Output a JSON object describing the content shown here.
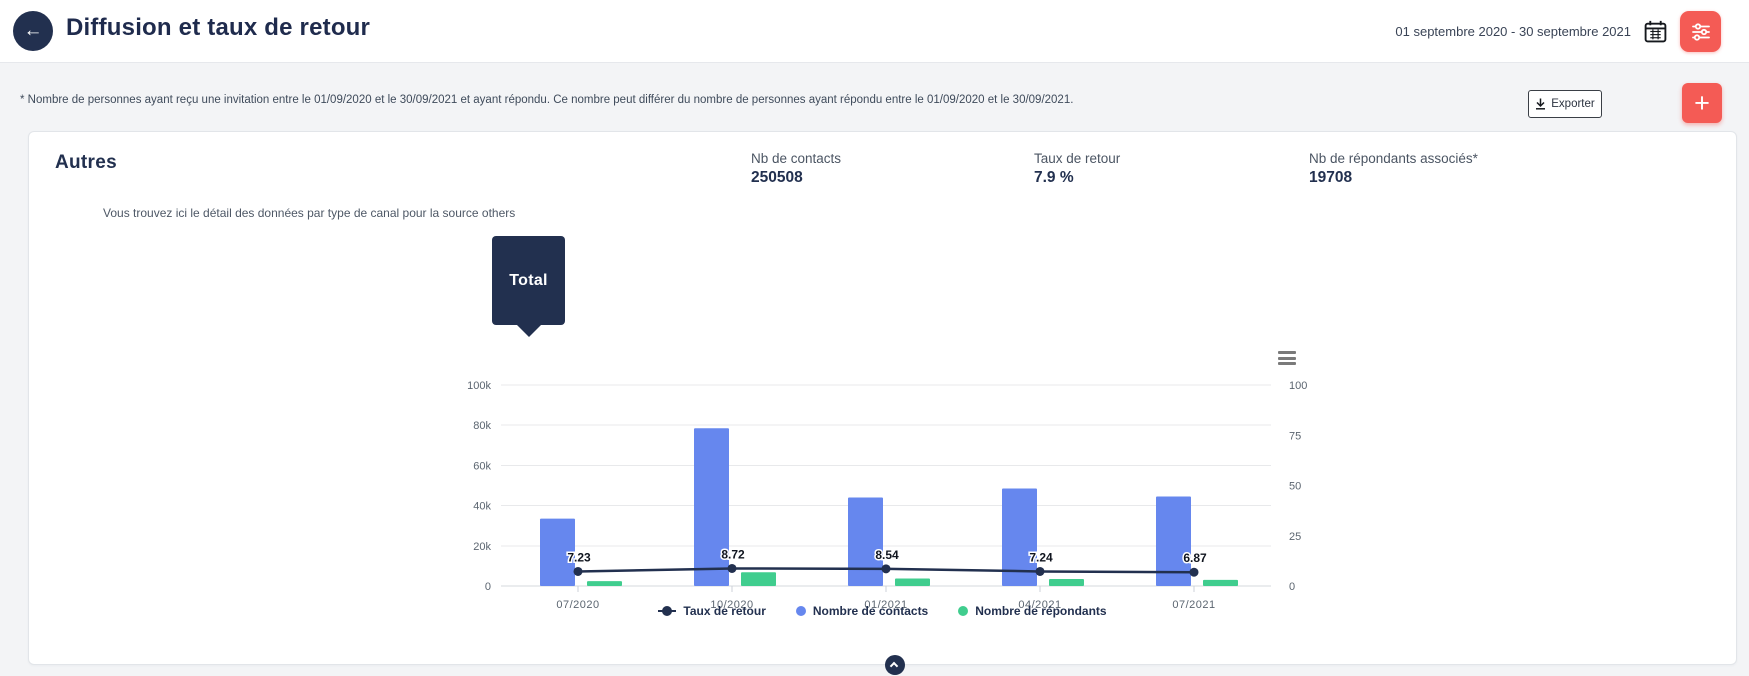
{
  "header": {
    "title": "Diffusion et taux de retour",
    "date_range": "01 septembre 2020 - 30 septembre 2021"
  },
  "toolbar": {
    "note": "* Nombre de personnes ayant reçu une invitation entre le 01/09/2020 et le 30/09/2021 et ayant répondu. Ce nombre peut différer du nombre de personnes ayant répondu entre le 01/09/2020 et le 30/09/2021.",
    "export_label": "Exporter",
    "add_label": "+"
  },
  "card": {
    "title": "Autres",
    "subtitle": "Vous trouvez ici le détail des données par type de canal pour la source others",
    "badge": "Total",
    "stats": [
      {
        "label": "Nb de contacts",
        "value": "250508"
      },
      {
        "label": "Taux de retour",
        "value": "7.9 %"
      },
      {
        "label": "Nb de répondants associés*",
        "value": "19708"
      }
    ]
  },
  "icons": {
    "back": "arrow-left",
    "calendar": "calendar",
    "filter": "sliders",
    "export": "download",
    "add": "plus",
    "chart_menu": "hamburger",
    "scroll_top": "chevron-up"
  },
  "colors": {
    "navy": "#22304f",
    "accent_red": "#f45b55",
    "bar_blue": "#6687ee",
    "bar_green": "#40cd8e",
    "grid": "#e8e9eb",
    "axis_label": "#5b6570",
    "page_bg": "#f3f4f6"
  },
  "chart_data": {
    "type": "bar",
    "subtype": "dual-axis bar + line",
    "title": "",
    "categories": [
      "07/2020",
      "10/2020",
      "01/2021",
      "04/2021",
      "07/2021"
    ],
    "series": [
      {
        "name": "Taux de retour",
        "type": "line",
        "axis": "right",
        "color": "#22304f",
        "values": [
          7.23,
          8.72,
          8.54,
          7.24,
          6.87
        ],
        "point_labels": [
          "7.23",
          "8.72",
          "8.54",
          "7.24",
          "6.87"
        ]
      },
      {
        "name": "Nombre de contacts",
        "type": "bar",
        "axis": "left",
        "color": "#6687ee",
        "values": [
          33500,
          78500,
          44000,
          48500,
          44500
        ]
      },
      {
        "name": "Nombre de répondants",
        "type": "bar",
        "axis": "left",
        "color": "#40cd8e",
        "values": [
          2422,
          6845,
          3758,
          3511,
          3057
        ]
      }
    ],
    "left_axis": {
      "ticks": [
        "0",
        "20k",
        "40k",
        "60k",
        "80k",
        "100k"
      ],
      "tick_values": [
        0,
        20000,
        40000,
        60000,
        80000,
        100000
      ],
      "max": 100000
    },
    "right_axis": {
      "ticks": [
        "0",
        "25",
        "50",
        "75",
        "100"
      ],
      "tick_values": [
        0,
        25,
        50,
        75,
        100
      ],
      "max": 100
    },
    "grid": true,
    "legend_position": "bottom"
  }
}
